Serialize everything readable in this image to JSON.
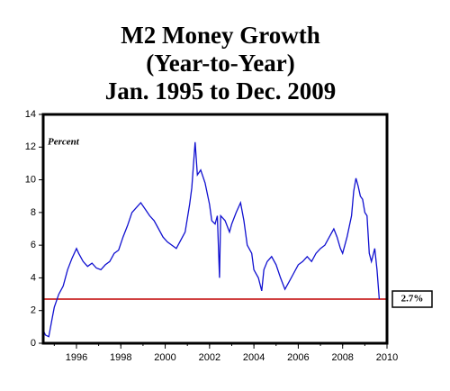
{
  "chart_data": {
    "type": "line",
    "title_lines": [
      "M2 Money Growth",
      "(Year-to-Year)",
      "Jan. 1995 to Dec. 2009"
    ],
    "ylabel": "Percent",
    "x": [
      1994.5,
      1994.6,
      1994.75,
      1994.9,
      1995.0,
      1995.2,
      1995.4,
      1995.6,
      1995.8,
      1996.0,
      1996.1,
      1996.3,
      1996.5,
      1996.7,
      1996.9,
      1997.1,
      1997.3,
      1997.5,
      1997.7,
      1997.9,
      1998.1,
      1998.3,
      1998.5,
      1998.7,
      1998.9,
      1999.1,
      1999.3,
      1999.5,
      1999.7,
      1999.9,
      2000.1,
      2000.3,
      2000.5,
      2000.7,
      2000.9,
      2001.1,
      2001.2,
      2001.35,
      2001.45,
      2001.6,
      2001.8,
      2002.0,
      2002.1,
      2002.25,
      2002.35,
      2002.45,
      2002.5,
      2002.7,
      2002.9,
      2003.0,
      2003.2,
      2003.4,
      2003.55,
      2003.7,
      2003.9,
      2004.0,
      2004.2,
      2004.35,
      2004.45,
      2004.6,
      2004.8,
      2005.0,
      2005.2,
      2005.4,
      2005.6,
      2005.8,
      2006.0,
      2006.2,
      2006.4,
      2006.6,
      2006.8,
      2007.0,
      2007.2,
      2007.4,
      2007.6,
      2007.75,
      2007.9,
      2008.0,
      2008.2,
      2008.4,
      2008.5,
      2008.6,
      2008.7,
      2008.8,
      2008.9,
      2009.0,
      2009.1,
      2009.2,
      2009.3,
      2009.45,
      2009.55,
      2009.65
    ],
    "series": [
      {
        "name": "M2",
        "color": "#1010d0",
        "values": [
          0.8,
          0.5,
          0.4,
          1.5,
          2.2,
          3.0,
          3.5,
          4.5,
          5.2,
          5.8,
          5.5,
          5.0,
          4.7,
          4.9,
          4.6,
          4.5,
          4.8,
          5.0,
          5.5,
          5.7,
          6.5,
          7.2,
          8.0,
          8.3,
          8.6,
          8.2,
          7.8,
          7.5,
          7.0,
          6.5,
          6.2,
          6.0,
          5.8,
          6.3,
          6.8,
          8.5,
          9.5,
          12.3,
          10.3,
          10.6,
          9.8,
          8.5,
          7.5,
          7.3,
          7.8,
          4.0,
          7.8,
          7.5,
          6.8,
          7.3,
          8.0,
          8.6,
          7.5,
          6.0,
          5.5,
          4.5,
          4.0,
          3.2,
          4.5,
          5.0,
          5.3,
          4.8,
          4.0,
          3.3,
          3.8,
          4.3,
          4.8,
          5.0,
          5.3,
          5.0,
          5.5,
          5.8,
          6.0,
          6.5,
          7.0,
          6.5,
          5.8,
          5.5,
          6.5,
          7.8,
          9.3,
          10.1,
          9.6,
          9.0,
          8.8,
          8.0,
          7.8,
          5.5,
          5.0,
          5.8,
          4.5,
          2.7
        ]
      }
    ],
    "xlim": [
      1994.5,
      2010
    ],
    "xticks": [
      1996,
      1998,
      2000,
      2002,
      2004,
      2006,
      2008,
      2010
    ],
    "ylim": [
      0,
      14
    ],
    "yticks": [
      0,
      2,
      4,
      6,
      8,
      10,
      12,
      14
    ],
    "reference_line": {
      "value": 2.7,
      "label": "2.7%",
      "color": "#c00000"
    }
  }
}
